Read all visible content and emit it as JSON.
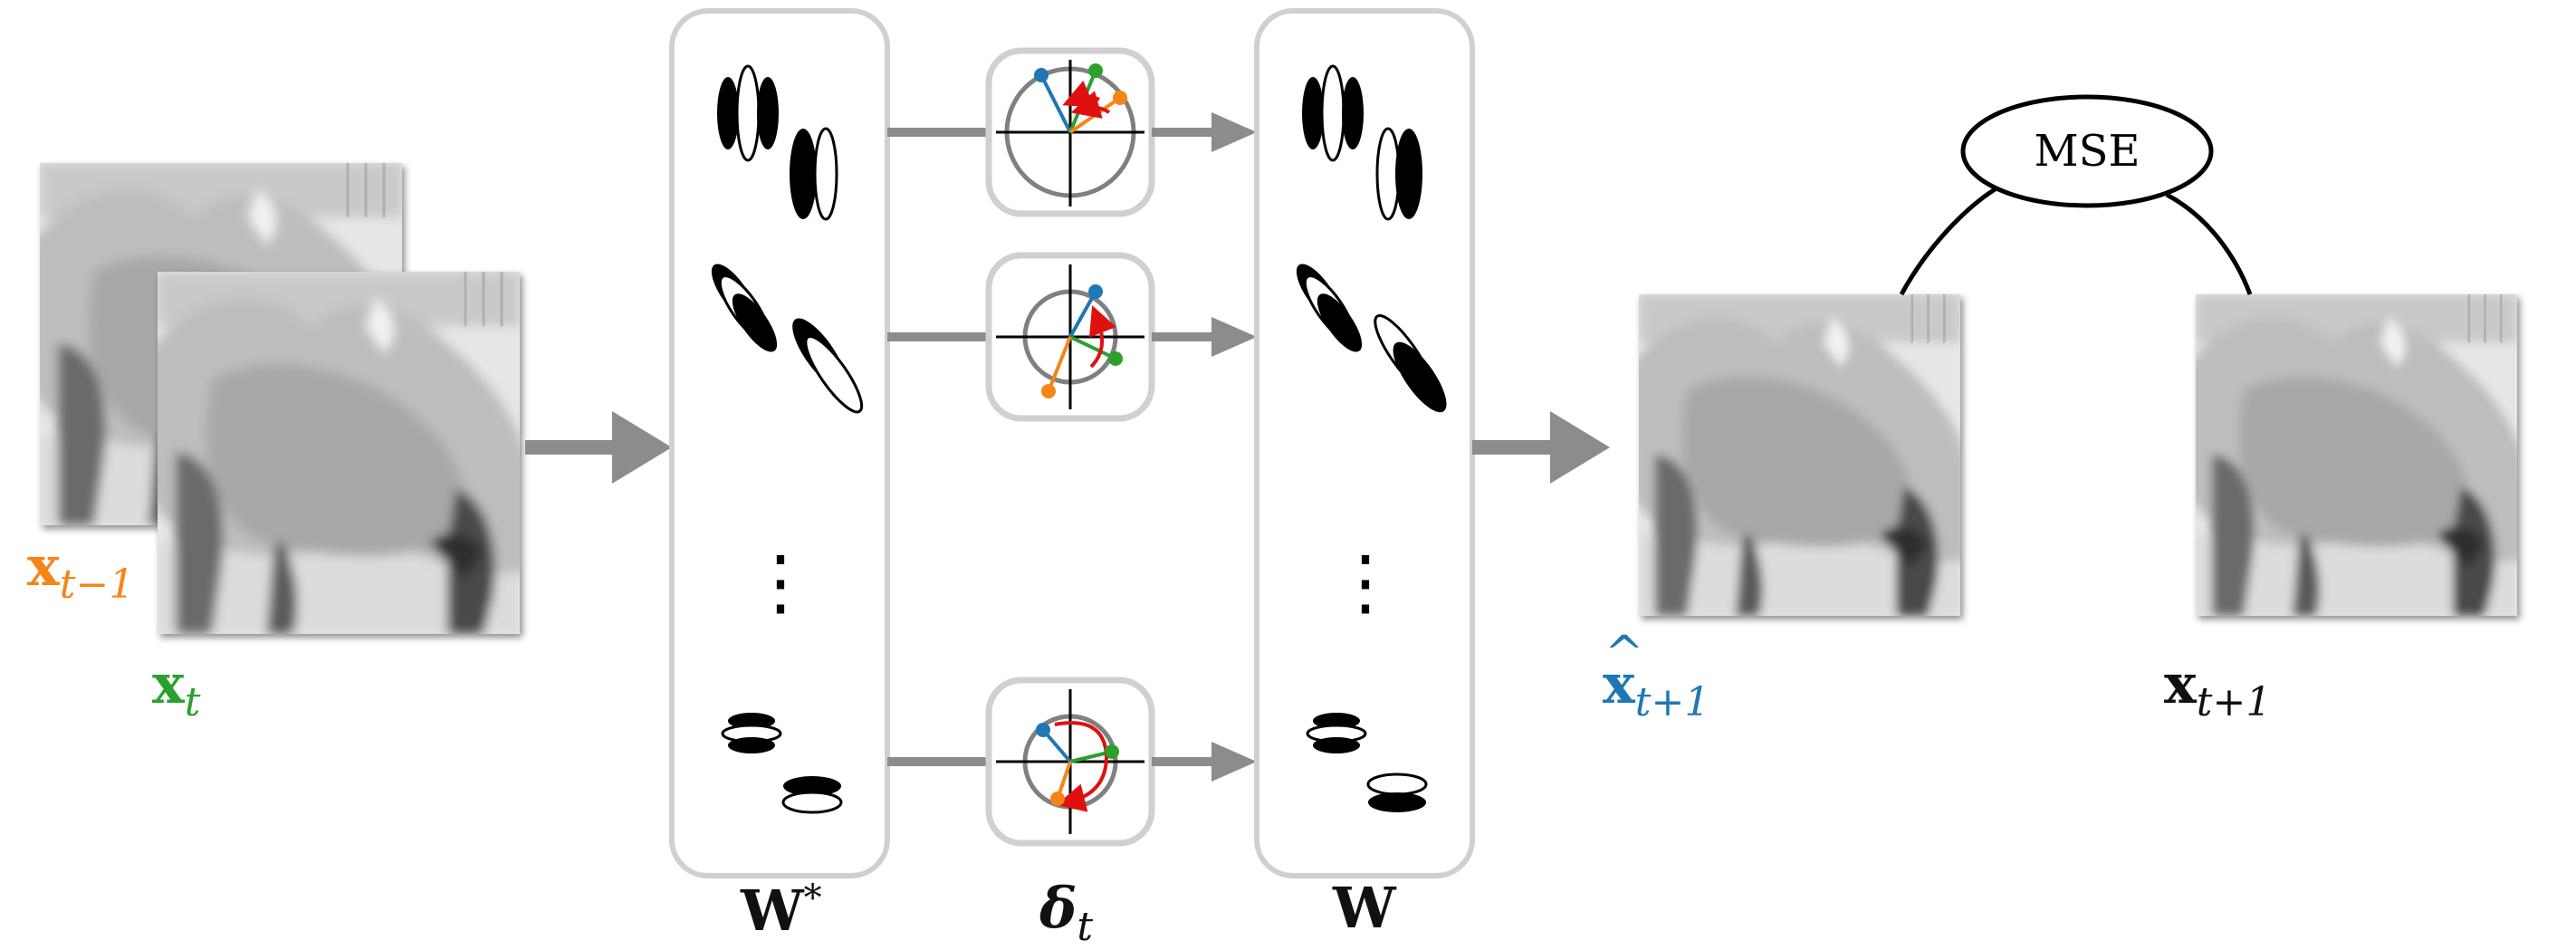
{
  "diagram": {
    "labels": {
      "x_prev": {
        "base": "x",
        "sub": "t−1"
      },
      "x_curr": {
        "base": "x",
        "sub": "t"
      },
      "x_pred": {
        "hat": "^",
        "base": "x",
        "sub": "t+1"
      },
      "x_next": {
        "base": "x",
        "sub": "t+1"
      },
      "w_star": {
        "base": "W",
        "sup": "*"
      },
      "delta": {
        "base": "δ",
        "sub": "t"
      },
      "w": {
        "base": "W"
      },
      "mse": "MSE",
      "dots_left": "⋮",
      "dots_right": "⋮"
    },
    "colors": {
      "orange": "#f58518",
      "green": "#2ca02c",
      "blue": "#1f77b4",
      "red": "#e01010",
      "arrow_gray": "#8c8c8c",
      "panel_border": "#d0d0d0"
    },
    "images": {
      "frame_prev": "camel-frame-icon",
      "frame_curr": "camel-frame-icon",
      "frame_pred": "camel-frame-icon",
      "frame_next": "camel-frame-icon"
    }
  }
}
